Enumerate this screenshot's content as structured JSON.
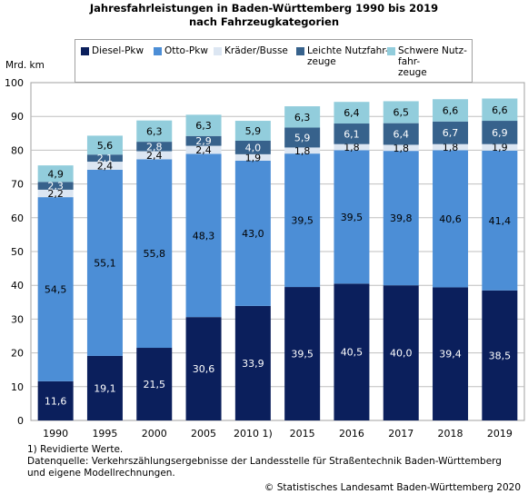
{
  "chart_data": {
    "type": "bar",
    "stacked": true,
    "title": "Jahresfahrleistungen in Baden-Württemberg 1990 bis 2019\nnach Fahrzeugkategorien",
    "ylabel": "Mrd. km",
    "ylim": [
      0,
      100
    ],
    "yticks": [
      0,
      10,
      20,
      30,
      40,
      50,
      60,
      70,
      80,
      90,
      100
    ],
    "grid": true,
    "legend_position": "top",
    "categories": [
      "1990",
      "1995",
      "2000",
      "2005",
      "2010 1)",
      "2015",
      "2016",
      "2017",
      "2018",
      "2019"
    ],
    "series": [
      {
        "name": "Diesel-Pkw",
        "color": "#0b1f5c",
        "label_color": "#ffffff",
        "values": [
          11.6,
          19.1,
          21.5,
          30.6,
          33.9,
          39.5,
          40.5,
          40.0,
          39.4,
          38.5
        ],
        "labels": [
          "11,6",
          "19,1",
          "21,5",
          "30,6",
          "33,9",
          "39,5",
          "40,5",
          "40,0",
          "39,4",
          "38,5"
        ]
      },
      {
        "name": "Otto-Pkw",
        "color": "#4c8ed6",
        "label_color": "#000000",
        "values": [
          54.5,
          55.1,
          55.8,
          48.3,
          43.0,
          39.5,
          39.5,
          39.8,
          40.6,
          41.4
        ],
        "labels": [
          "54,5",
          "55,1",
          "55,8",
          "48,3",
          "43,0",
          "39,5",
          "39,5",
          "39,8",
          "40,6",
          "41,4"
        ]
      },
      {
        "name": "Kräder/Busse",
        "color": "#dce6f2",
        "label_color": "#000000",
        "values": [
          2.2,
          2.4,
          2.4,
          2.4,
          1.9,
          1.8,
          1.8,
          1.8,
          1.8,
          1.9
        ],
        "labels": [
          "2,2",
          "2,4",
          "2,4",
          "2,4",
          "1,9",
          "1,8",
          "1,8",
          "1,8",
          "1,8",
          "1,9"
        ]
      },
      {
        "name": "Leichte Nutzfahr-\nzeuge",
        "color": "#37628c",
        "label_color": "#ffffff",
        "values": [
          2.3,
          2.1,
          2.8,
          2.9,
          4.0,
          5.9,
          6.1,
          6.4,
          6.7,
          6.9
        ],
        "labels": [
          "2,3",
          "2,1",
          "2,8",
          "2,9",
          "4,0",
          "5,9",
          "6,1",
          "6,4",
          "6,7",
          "6,9"
        ]
      },
      {
        "name": "Schwere Nutz-\nfahr-\nzeuge",
        "color": "#92cddc",
        "label_color": "#000000",
        "values": [
          4.9,
          5.6,
          6.3,
          6.3,
          5.9,
          6.3,
          6.4,
          6.5,
          6.6,
          6.6
        ],
        "labels": [
          "4,9",
          "5,6",
          "6,3",
          "6,3",
          "5,9",
          "6,3",
          "6,4",
          "6,5",
          "6,6",
          "6,6"
        ]
      }
    ]
  },
  "footnote": "1) Revidierte Werte.",
  "source": "Datenquelle: Verkehrszählungsergebnisse der Landesstelle für Straßentechnik Baden-Württemberg\nund eigene Modellrechnungen.",
  "copyright": "© Statistisches Landesamt Baden-Württemberg 2020"
}
